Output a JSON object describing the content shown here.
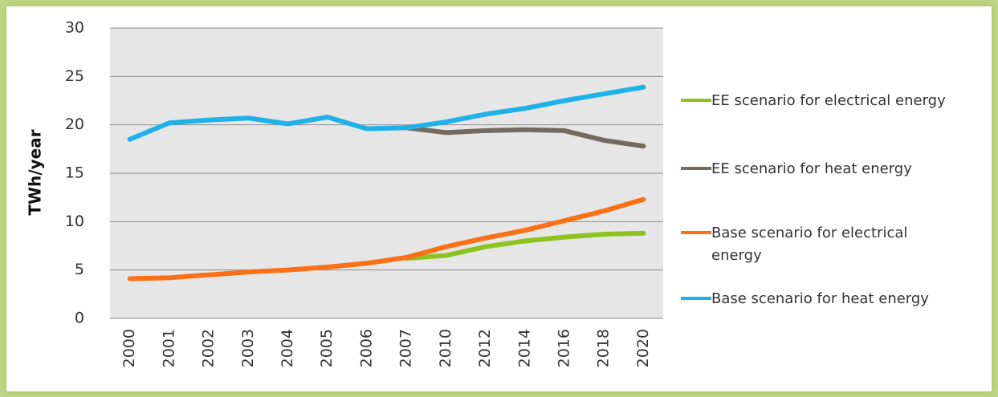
{
  "chart_data": {
    "type": "line",
    "ylabel": "TWh/year",
    "categories": [
      "2000",
      "2001",
      "2002",
      "2003",
      "2004",
      "2005",
      "2006",
      "2007",
      "2010",
      "2012",
      "2014",
      "2016",
      "2018",
      "2020"
    ],
    "series": [
      {
        "name": "EE scenario for electrical energy",
        "color": "#8dc21f",
        "values": [
          null,
          null,
          null,
          null,
          null,
          null,
          null,
          6.2,
          6.5,
          7.4,
          8.0,
          8.4,
          8.7,
          8.8
        ]
      },
      {
        "name": "EE scenario for heat energy",
        "color": "#746b5f",
        "values": [
          null,
          null,
          null,
          null,
          null,
          null,
          null,
          19.7,
          19.2,
          19.4,
          19.5,
          19.4,
          18.4,
          17.8
        ]
      },
      {
        "name": "Base scenario for electrical energy",
        "color": "#fb7016",
        "values": [
          4.1,
          4.2,
          4.5,
          4.8,
          5.0,
          5.3,
          5.7,
          6.3,
          7.4,
          8.3,
          9.1,
          10.1,
          11.1,
          12.3
        ]
      },
      {
        "name": "Base scenario for heat energy",
        "color": "#1eb1ea",
        "values": [
          18.5,
          20.2,
          20.5,
          20.7,
          20.1,
          20.8,
          19.6,
          19.7,
          20.3,
          21.1,
          21.7,
          22.5,
          23.2,
          23.9
        ]
      }
    ],
    "ylim": [
      0,
      30
    ],
    "yticks": [
      0,
      5,
      10,
      15,
      20,
      25,
      30
    ],
    "grid": true,
    "legend": "right"
  }
}
